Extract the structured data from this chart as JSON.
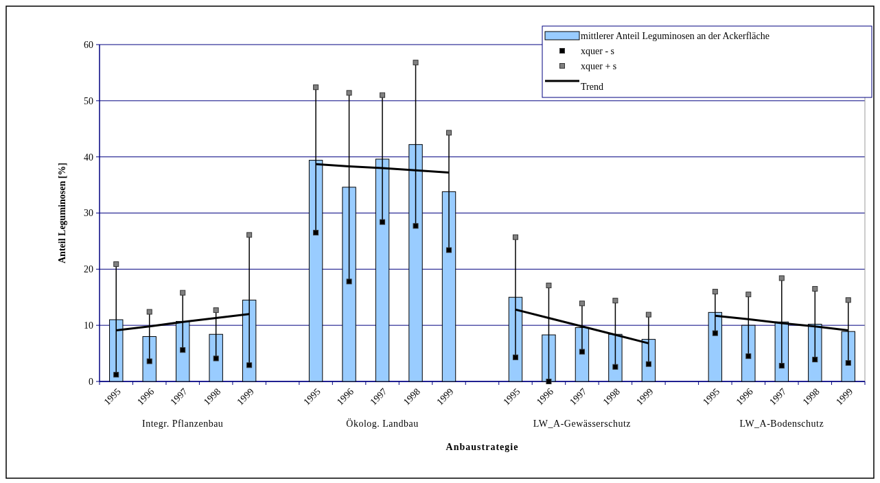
{
  "chart_data": {
    "type": "bar",
    "xlabel": "Anbaustrategie",
    "ylabel": "Anteil Leguminosen [%]",
    "categories": [
      "1995",
      "1996",
      "1997",
      "1998",
      "1999",
      null,
      "1995",
      "1996",
      "1997",
      "1998",
      "1999",
      null,
      "1995",
      "1996",
      "1997",
      "1998",
      "1999",
      null,
      "1995",
      "1996",
      "1997",
      "1998",
      "1999"
    ],
    "series": [
      {
        "name": "mittlerer Anteil Leguminosen an der Ackerfläche",
        "color": "#99ccff",
        "values": [
          11.0,
          8.0,
          10.7,
          8.4,
          14.5,
          null,
          39.4,
          34.6,
          39.6,
          42.2,
          33.8,
          null,
          15.0,
          8.3,
          9.6,
          8.4,
          7.5,
          null,
          12.3,
          10.0,
          10.6,
          10.2,
          8.9
        ]
      },
      {
        "name": "xquer - s",
        "type": "scatter",
        "color": "#000000",
        "marker": "square",
        "values": [
          1.2,
          3.6,
          5.6,
          4.1,
          2.9,
          null,
          26.5,
          17.8,
          28.4,
          27.7,
          23.4,
          null,
          4.3,
          0,
          5.3,
          2.6,
          3.1,
          null,
          8.6,
          4.5,
          2.8,
          3.9,
          3.3
        ]
      },
      {
        "name": "xquer + s",
        "type": "scatter",
        "color": "#808080",
        "marker": "square",
        "values": [
          20.9,
          12.4,
          15.8,
          12.7,
          26.1,
          null,
          52.4,
          51.4,
          51.0,
          56.8,
          44.3,
          null,
          25.7,
          17.1,
          13.9,
          14.4,
          11.9,
          null,
          16.0,
          15.5,
          18.4,
          16.5,
          14.5
        ]
      },
      {
        "name": "Trend",
        "type": "line",
        "color": "#000000",
        "line_style": "solid",
        "values": [
          9.1,
          9.8,
          10.6,
          11.3,
          12.0,
          null,
          38.7,
          38.3,
          38.0,
          37.6,
          37.2,
          null,
          12.8,
          11.3,
          9.8,
          8.3,
          6.8,
          null,
          11.7,
          11.1,
          10.4,
          9.8,
          9.1
        ]
      }
    ],
    "annotations": [
      "Integr. Pflanzenbau",
      "Ökolog. Landbau",
      "LW_A-Gewässerschutz",
      "LW_A-Bodenschutz"
    ],
    "ylim": [
      0,
      60
    ],
    "yticks": [
      0,
      10,
      20,
      30,
      40,
      50,
      60
    ],
    "grid": "y",
    "legend": "top right"
  }
}
